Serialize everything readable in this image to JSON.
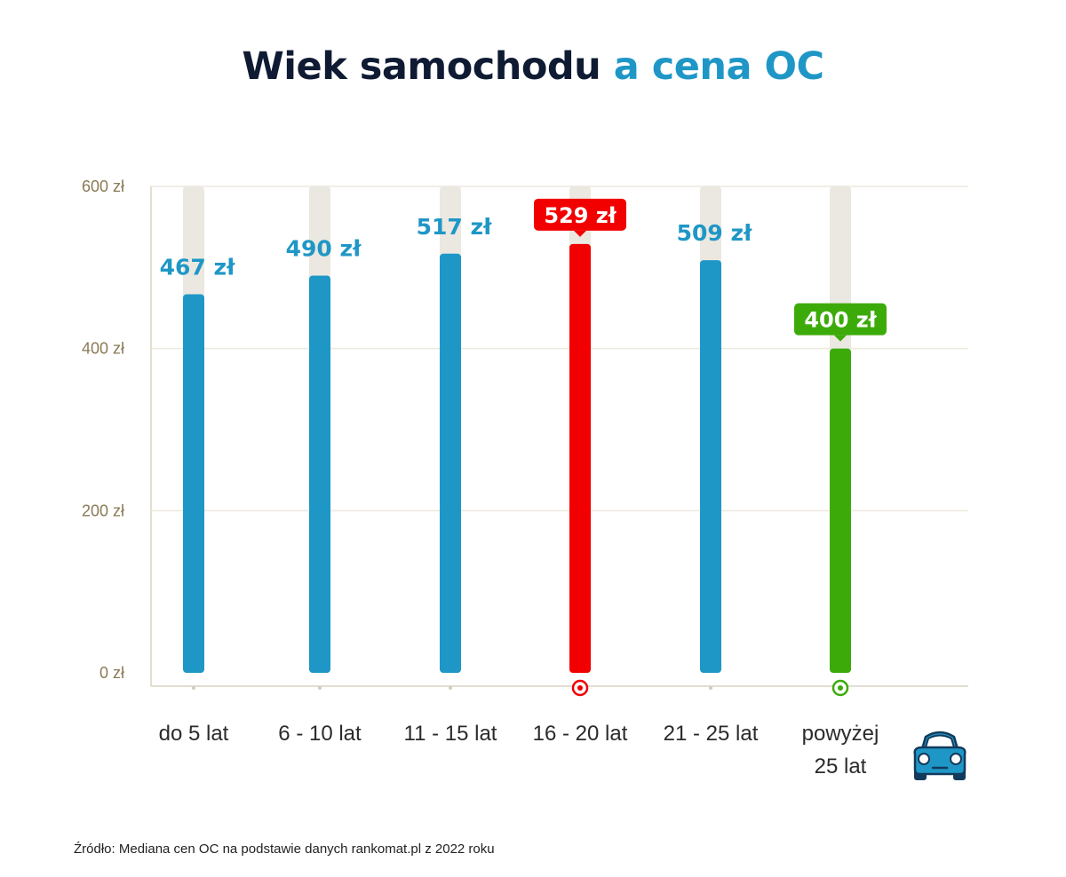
{
  "title": {
    "main": "Wiek samochodu",
    "accent": "a cena OC"
  },
  "chart_data": {
    "type": "bar",
    "title": "Wiek samochodu a cena OC",
    "categories": [
      "do 5 lat",
      "6 - 10 lat",
      "11 - 15 lat",
      "16 - 20 lat",
      "21 - 25 lat",
      "powyżej 25 lat"
    ],
    "category_lines": [
      [
        "do 5 lat"
      ],
      [
        "6 - 10 lat"
      ],
      [
        "11 - 15 lat"
      ],
      [
        "16 - 20 lat"
      ],
      [
        "21 - 25 lat"
      ],
      [
        "powyżej",
        "25 lat"
      ]
    ],
    "values": [
      467,
      490,
      517,
      529,
      509,
      400
    ],
    "value_labels": [
      "467 zł",
      "490 zł",
      "517 zł",
      "529 zł",
      "509 zł",
      "400 zł"
    ],
    "highlight": [
      "none",
      "none",
      "none",
      "max",
      "none",
      "min"
    ],
    "yticks": [
      0,
      200,
      400,
      600
    ],
    "ytick_labels": [
      "0 zł",
      "200 zł",
      "400 zł",
      "600 zł"
    ],
    "ylim": [
      0,
      600
    ],
    "grid": true,
    "xlabel": "",
    "ylabel": ""
  },
  "colors": {
    "bar": "#1f97c6",
    "max": "#f20000",
    "min": "#3cab0a",
    "track": "#ebe8e1",
    "axis_text": "#8a7a55",
    "grid": "#ece9dd",
    "title_dark": "#0f1b33",
    "title_accent": "#1f97c6"
  },
  "icons": {
    "car": "car-icon"
  },
  "source": "Źródło: Mediana cen OC na podstawie danych rankomat.pl z 2022 roku"
}
